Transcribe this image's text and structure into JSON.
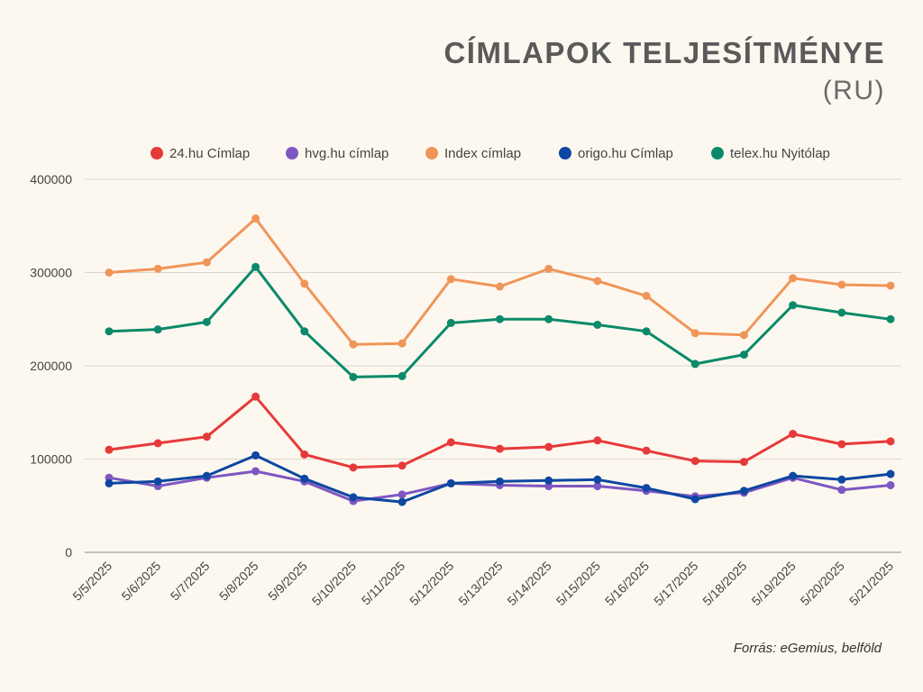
{
  "title": "CÍMLAPOK TELJESÍTMÉNYE",
  "subtitle": "(RU)",
  "source": "Forrás: eGemius, belföld",
  "chart_data": {
    "type": "line",
    "title": "CÍMLAPOK TELJESÍTMÉNYE",
    "subtitle": "(RU)",
    "xlabel": "",
    "ylabel": "",
    "ylim": [
      0,
      400000
    ],
    "yticks": [
      0,
      100000,
      200000,
      300000,
      400000
    ],
    "grid": true,
    "legend": "top",
    "categories": [
      "5/5/2025",
      "5/6/2025",
      "5/7/2025",
      "5/8/2025",
      "5/9/2025",
      "5/10/2025",
      "5/11/2025",
      "5/12/2025",
      "5/13/2025",
      "5/14/2025",
      "5/15/2025",
      "5/16/2025",
      "5/17/2025",
      "5/18/2025",
      "5/19/2025",
      "5/20/2025",
      "5/21/2025"
    ],
    "series": [
      {
        "name": "24.hu Címlap",
        "color": "#e63a3a",
        "values": [
          110000,
          117000,
          124000,
          167000,
          105000,
          91000,
          93000,
          118000,
          111000,
          113000,
          120000,
          109000,
          98000,
          97000,
          127000,
          116000,
          119000
        ]
      },
      {
        "name": "hvg.hu címlap",
        "color": "#7e57c2",
        "values": [
          80000,
          71000,
          80000,
          87000,
          76000,
          55000,
          62000,
          74000,
          72000,
          71000,
          71000,
          66000,
          60000,
          64000,
          80000,
          67000,
          72000
        ]
      },
      {
        "name": "Index címlap",
        "color": "#f0955a",
        "values": [
          300000,
          304000,
          311000,
          358000,
          288000,
          223000,
          224000,
          293000,
          285000,
          304000,
          291000,
          275000,
          235000,
          233000,
          294000,
          287000,
          286000
        ]
      },
      {
        "name": "origo.hu Címlap",
        "color": "#0d47a1",
        "values": [
          74000,
          76000,
          82000,
          104000,
          79000,
          59000,
          54000,
          74000,
          76000,
          77000,
          78000,
          69000,
          57000,
          66000,
          82000,
          78000,
          84000
        ]
      },
      {
        "name": "telex.hu Nyitólap",
        "color": "#0a8a6a",
        "values": [
          237000,
          239000,
          247000,
          306000,
          237000,
          188000,
          189000,
          246000,
          250000,
          250000,
          244000,
          237000,
          202000,
          212000,
          265000,
          257000,
          250000
        ]
      }
    ]
  }
}
